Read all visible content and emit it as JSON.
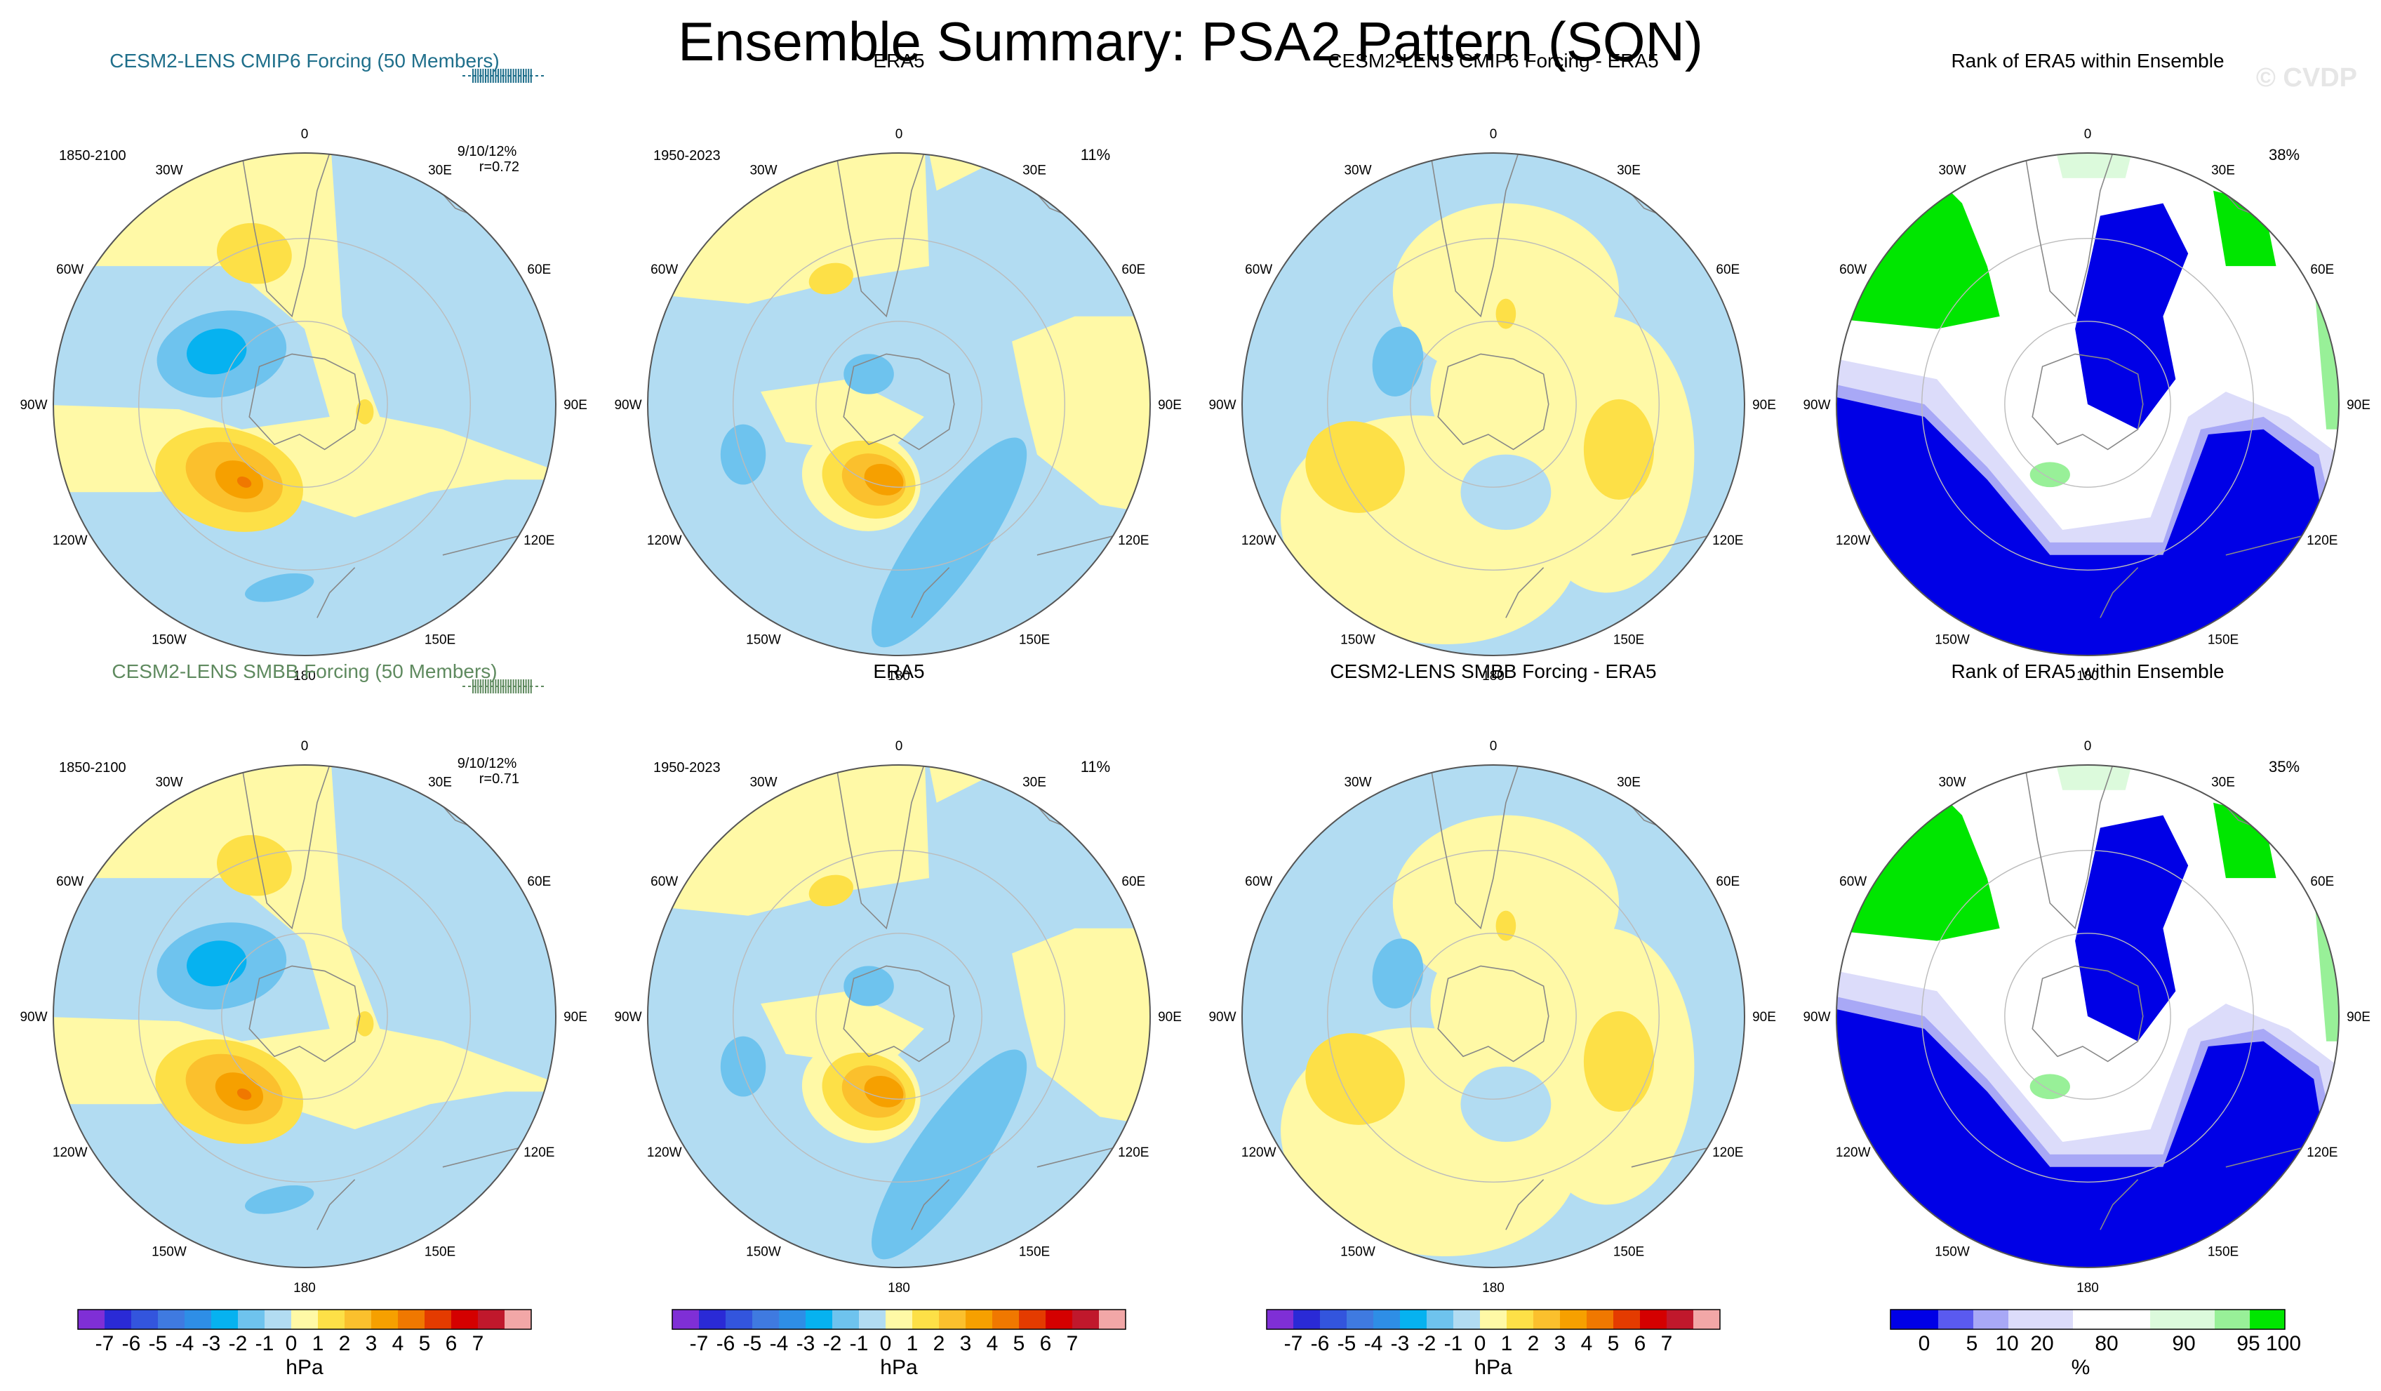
{
  "main_title": "Ensemble Summary: PSA2 Pattern (SON)",
  "watermark": "© CVDP",
  "rows": [
    {
      "panels": [
        {
          "title": "CESM2-LENS CMIP6 Forcing (50 Members)",
          "title_color": "#1f6f8b",
          "period": "1850-2100",
          "pct": "",
          "stats": [
            "9/10/12%",
            "r=0.72"
          ],
          "kind": "ens"
        },
        {
          "title": "ERA5",
          "title_color": "#000000",
          "period": "1950-2023",
          "pct": "11%",
          "kind": "obs"
        },
        {
          "title": "CESM2-LENS CMIP6 Forcing - ERA5",
          "title_color": "#000000",
          "period": "",
          "pct": "",
          "kind": "diff"
        },
        {
          "title": "Rank of ERA5 within Ensemble",
          "title_color": "#000000",
          "period": "",
          "pct": "38%",
          "kind": "rank"
        }
      ]
    },
    {
      "panels": [
        {
          "title": "CESM2-LENS SMBB Forcing (50 Members)",
          "title_color": "#5f8a5f",
          "period": "1850-2100",
          "pct": "",
          "stats": [
            "9/10/12%",
            "r=0.71"
          ],
          "kind": "ens"
        },
        {
          "title": "ERA5",
          "title_color": "#000000",
          "period": "1950-2023",
          "pct": "11%",
          "kind": "obs"
        },
        {
          "title": "CESM2-LENS SMBB Forcing - ERA5",
          "title_color": "#000000",
          "period": "",
          "pct": "",
          "kind": "diff"
        },
        {
          "title": "Rank of ERA5 within Ensemble",
          "title_color": "#000000",
          "period": "",
          "pct": "35%",
          "kind": "rank"
        }
      ]
    }
  ],
  "lon_labels": [
    "0",
    "30E",
    "60E",
    "90E",
    "120E",
    "150E",
    "180",
    "150W",
    "120W",
    "90W",
    "60W",
    "30W"
  ],
  "chart_data": {
    "type": "heatmap",
    "projection": "south polar stereographic",
    "colorbars": [
      {
        "units": "hPa",
        "tick_labels": [
          "-7",
          "-6",
          "-5",
          "-4",
          "-3",
          "-2",
          "-1",
          "0",
          "1",
          "2",
          "3",
          "4",
          "5",
          "6",
          "7"
        ],
        "colors": [
          "#7f2fd6",
          "#2a2ad6",
          "#3355dd",
          "#3f7ae0",
          "#2e8ee6",
          "#06b2f0",
          "#6ec3ee",
          "#b2dcf2",
          "#fff9a6",
          "#fde047",
          "#fbc02d",
          "#f6a000",
          "#f07800",
          "#e43b00",
          "#d40000",
          "#c0182c",
          "#f2a7a7"
        ]
      },
      {
        "units": "%",
        "tick_labels": [
          "0",
          "5",
          "10",
          "20",
          "80",
          "90",
          "95",
          "100"
        ],
        "colors": [
          "#0000e6",
          "#5a5af0",
          "#a8a8f6",
          "#dcdcfa",
          "#ffffff",
          "#dcfadc",
          "#98f098",
          "#00e600"
        ]
      }
    ]
  }
}
